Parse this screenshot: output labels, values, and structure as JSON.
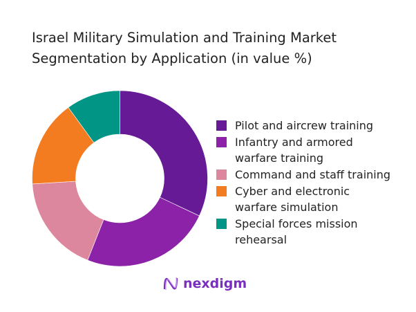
{
  "title_lines": [
    "Israel Military Simulation and Training Market",
    "Segmentation by Application (in value %)"
  ],
  "chart_data": {
    "type": "pie",
    "donut": true,
    "title": "Israel Military Simulation and Training Market Segmentation by Application (in value %)",
    "categories": [
      "Pilot and aircrew training",
      "Infantry and armored warfare training",
      "Command and staff training",
      "Cyber and electronic warfare simulation",
      "Special forces mission rehearsal"
    ],
    "values": [
      32,
      24,
      18,
      16,
      10
    ],
    "colors": [
      "#671a96",
      "#8b22a8",
      "#dd879f",
      "#f47c20",
      "#019585"
    ],
    "legend_position": "right"
  },
  "legend_lines": [
    [
      "Pilot and aircrew training"
    ],
    [
      "Infantry and armored",
      "warfare training"
    ],
    [
      "Command and staff training"
    ],
    [
      "Cyber and electronic",
      "warfare simulation"
    ],
    [
      "Special forces mission",
      "rehearsal"
    ]
  ],
  "logo": {
    "text": "nexdigm",
    "icon": "nexdigm-wave-logo-icon"
  }
}
